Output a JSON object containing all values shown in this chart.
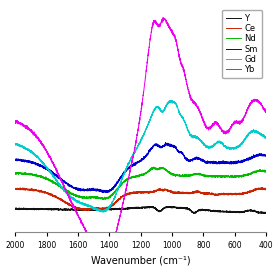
{
  "xlabel": "Wavenumber (cm⁻¹)",
  "xlim": [
    2000,
    400
  ],
  "legend_labels": [
    "Y",
    "Ce",
    "Nd",
    "Sm",
    "Gd",
    "Yb"
  ],
  "colors": {
    "Y": "#111111",
    "Ce": "#cc2200",
    "Nd": "#00bb00",
    "Sm": "#0000cc",
    "Gd": "#00cccc",
    "Yb": "#ee00ee"
  },
  "xticks": [
    2000,
    1800,
    1600,
    1400,
    1200,
    1000,
    800,
    600,
    400
  ],
  "background_color": "#ffffff",
  "linewidth": 0.7
}
